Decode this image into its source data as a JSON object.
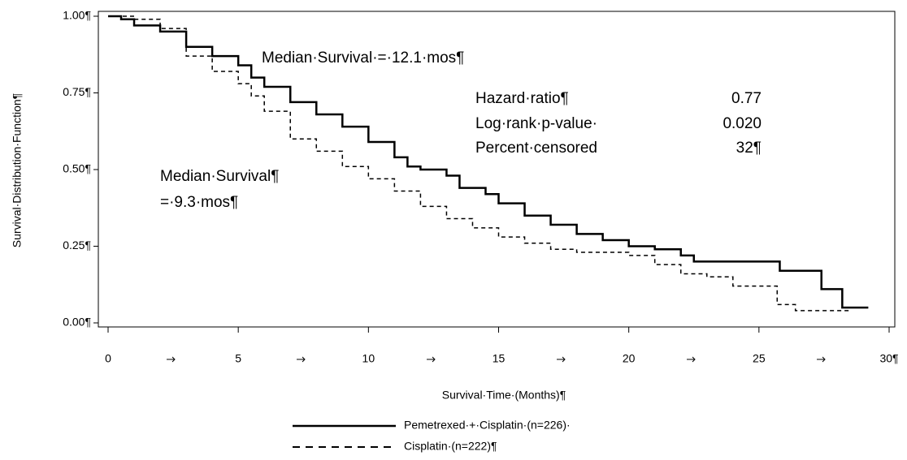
{
  "chart_data": {
    "type": "step",
    "y_label": "Survival·Distribution·Function¶",
    "x_label": "Survival·Time·(Months)¶",
    "xlim": [
      0,
      30
    ],
    "ylim": [
      0,
      1
    ],
    "xticks": [
      0,
      5,
      10,
      15,
      20,
      25,
      {
        "value": 30,
        "label": "30¶"
      }
    ],
    "yticks": [
      {
        "value": 0,
        "label": "0.00¶"
      },
      {
        "value": 0.25,
        "label": "0.25¶"
      },
      {
        "value": 0.5,
        "label": "0.50¶"
      },
      {
        "value": 0.75,
        "label": "0.75¶"
      },
      {
        "value": 1,
        "label": "1.00¶"
      }
    ],
    "annotations": {
      "median_pem": "Median·Survival·=·12.1·mos¶",
      "median_cis_1": "Median·Survival¶",
      "median_cis_2": "=·9.3·mos¶",
      "stats": [
        [
          "Hazard·ratio¶",
          "0.77"
        ],
        [
          "Log·rank·p-value·",
          "0.020"
        ],
        [
          "Percent·censored",
          "32¶"
        ]
      ]
    },
    "series": [
      {
        "name": "Pemetrexed·+·Cisplatin·(n=226)·",
        "color": "#000000",
        "dash": "solid",
        "x": [
          0,
          0.5,
          1,
          2,
          3,
          4,
          5,
          5.5,
          6,
          7,
          8,
          9,
          10,
          11,
          11.5,
          12,
          13,
          13.5,
          14.5,
          15,
          16,
          17,
          18,
          19,
          20,
          21,
          22,
          22.5,
          25.8,
          27.4,
          28.2,
          29.2
        ],
        "values": [
          1.0,
          0.99,
          0.97,
          0.95,
          0.9,
          0.87,
          0.84,
          0.8,
          0.77,
          0.72,
          0.68,
          0.64,
          0.59,
          0.54,
          0.51,
          0.5,
          0.48,
          0.44,
          0.42,
          0.39,
          0.35,
          0.32,
          0.29,
          0.27,
          0.25,
          0.24,
          0.22,
          0.2,
          0.17,
          0.11,
          0.05,
          0.05
        ]
      },
      {
        "name": "Cisplatin·(n=222)¶",
        "color": "#000000",
        "dash": "dashed",
        "x": [
          0,
          1,
          2,
          3,
          4,
          5,
          5.5,
          6,
          7,
          8,
          9,
          10,
          11,
          12,
          13,
          14,
          15,
          16,
          17,
          18,
          19,
          20,
          21,
          22,
          23,
          24,
          25,
          25.7,
          26.4,
          28.5
        ],
        "values": [
          1.0,
          0.99,
          0.96,
          0.87,
          0.82,
          0.78,
          0.74,
          0.69,
          0.6,
          0.56,
          0.51,
          0.47,
          0.43,
          0.38,
          0.34,
          0.31,
          0.28,
          0.26,
          0.24,
          0.23,
          0.23,
          0.22,
          0.19,
          0.16,
          0.15,
          0.12,
          0.12,
          0.06,
          0.04,
          0.04
        ]
      }
    ]
  }
}
